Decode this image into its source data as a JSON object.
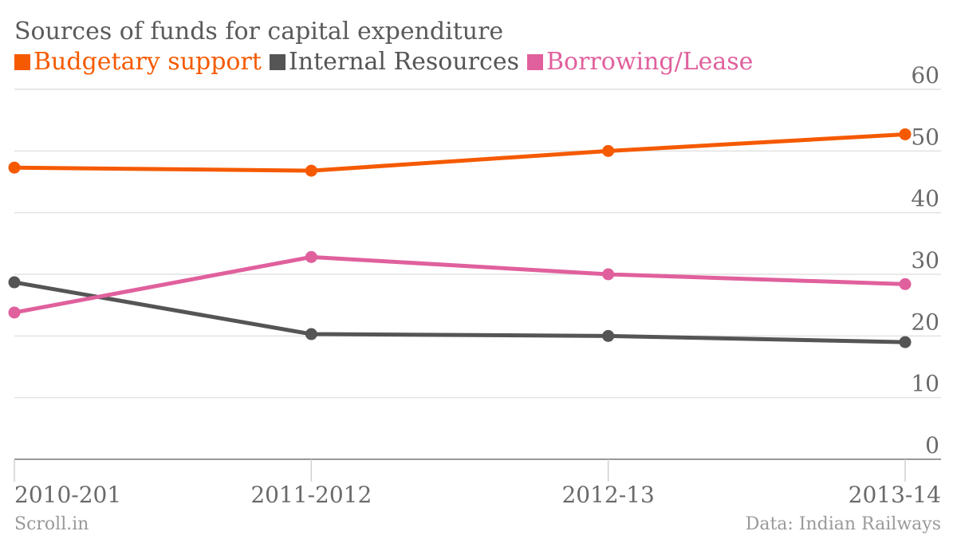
{
  "chart_data": {
    "type": "line",
    "title": "Sources of funds for capital expenditure",
    "categories": [
      "2010-201",
      "2011-2012",
      "2012-13",
      "2013-14"
    ],
    "series": [
      {
        "name": "Budgetary support",
        "color": "#f55a00",
        "values": [
          47.3,
          46.8,
          50.0,
          52.7
        ]
      },
      {
        "name": "Internal Resources",
        "color": "#555555",
        "values": [
          28.7,
          20.3,
          20.0,
          19.0
        ]
      },
      {
        "name": "Borrowing/Lease",
        "color": "#e0609d",
        "values": [
          23.8,
          32.8,
          30.0,
          28.4
        ]
      }
    ],
    "ylim": [
      0,
      60
    ],
    "yticks": [
      0,
      10,
      20,
      30,
      40,
      50,
      60
    ],
    "grid": true,
    "legend": "top-left"
  },
  "footer": {
    "source_left": "Scroll.in",
    "source_right": "Data: Indian Railways"
  }
}
